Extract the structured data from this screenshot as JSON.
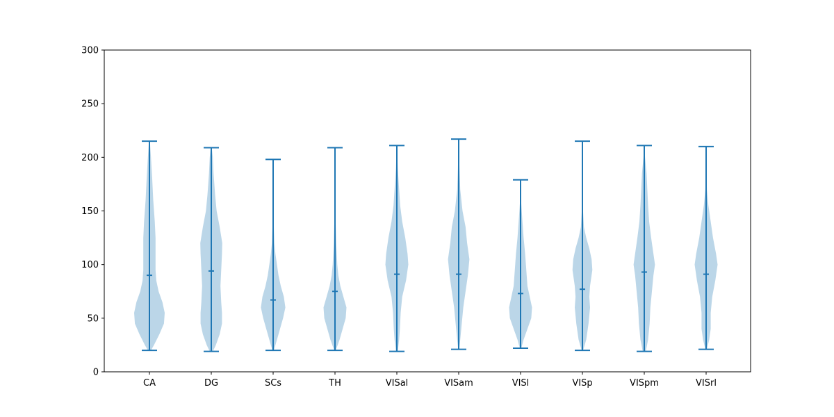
{
  "chart_data": {
    "type": "violin",
    "title": "",
    "xlabel": "",
    "ylabel": "",
    "ylim": [
      0,
      300
    ],
    "yticks": [
      0,
      50,
      100,
      150,
      200,
      250,
      300
    ],
    "grid": false,
    "colors": {
      "body": "#1f77b4",
      "body_alpha": 0.3,
      "lines": "#1f77b4"
    },
    "categories": [
      "CA",
      "DG",
      "SCs",
      "TH",
      "VISal",
      "VISam",
      "VISl",
      "VISp",
      "VISpm",
      "VISrl"
    ],
    "series": [
      {
        "min": 20,
        "max": 215,
        "mean": 90,
        "profile": [
          [
            20,
            0.1
          ],
          [
            25,
            0.3
          ],
          [
            35,
            0.65
          ],
          [
            45,
            0.95
          ],
          [
            55,
            1.0
          ],
          [
            65,
            0.85
          ],
          [
            75,
            0.6
          ],
          [
            85,
            0.45
          ],
          [
            95,
            0.4
          ],
          [
            110,
            0.4
          ],
          [
            125,
            0.4
          ],
          [
            140,
            0.35
          ],
          [
            160,
            0.25
          ],
          [
            180,
            0.18
          ],
          [
            200,
            0.1
          ],
          [
            215,
            0.03
          ]
        ]
      },
      {
        "min": 19,
        "max": 209,
        "mean": 94,
        "profile": [
          [
            19,
            0.1
          ],
          [
            25,
            0.3
          ],
          [
            35,
            0.55
          ],
          [
            45,
            0.7
          ],
          [
            55,
            0.7
          ],
          [
            65,
            0.65
          ],
          [
            80,
            0.6
          ],
          [
            95,
            0.65
          ],
          [
            110,
            0.7
          ],
          [
            120,
            0.72
          ],
          [
            135,
            0.55
          ],
          [
            150,
            0.35
          ],
          [
            165,
            0.25
          ],
          [
            185,
            0.15
          ],
          [
            200,
            0.1
          ],
          [
            209,
            0.03
          ]
        ]
      },
      {
        "min": 20,
        "max": 198,
        "mean": 67,
        "profile": [
          [
            20,
            0.05
          ],
          [
            30,
            0.25
          ],
          [
            40,
            0.45
          ],
          [
            50,
            0.65
          ],
          [
            60,
            0.8
          ],
          [
            70,
            0.7
          ],
          [
            80,
            0.5
          ],
          [
            90,
            0.35
          ],
          [
            100,
            0.25
          ],
          [
            110,
            0.15
          ],
          [
            120,
            0.08
          ],
          [
            140,
            0.03
          ],
          [
            170,
            0.01
          ],
          [
            198,
            0.01
          ]
        ]
      },
      {
        "min": 20,
        "max": 209,
        "mean": 75,
        "profile": [
          [
            20,
            0.05
          ],
          [
            30,
            0.3
          ],
          [
            40,
            0.5
          ],
          [
            50,
            0.7
          ],
          [
            60,
            0.75
          ],
          [
            70,
            0.55
          ],
          [
            80,
            0.35
          ],
          [
            90,
            0.22
          ],
          [
            100,
            0.15
          ],
          [
            120,
            0.08
          ],
          [
            140,
            0.04
          ],
          [
            170,
            0.02
          ],
          [
            209,
            0.01
          ]
        ]
      },
      {
        "min": 19,
        "max": 211,
        "mean": 91,
        "profile": [
          [
            19,
            0.06
          ],
          [
            30,
            0.15
          ],
          [
            40,
            0.2
          ],
          [
            55,
            0.25
          ],
          [
            70,
            0.35
          ],
          [
            85,
            0.6
          ],
          [
            100,
            0.75
          ],
          [
            110,
            0.7
          ],
          [
            125,
            0.55
          ],
          [
            140,
            0.35
          ],
          [
            155,
            0.22
          ],
          [
            170,
            0.15
          ],
          [
            190,
            0.06
          ],
          [
            211,
            0.01
          ]
        ]
      },
      {
        "min": 21,
        "max": 217,
        "mean": 91,
        "profile": [
          [
            21,
            0.03
          ],
          [
            30,
            0.1
          ],
          [
            45,
            0.2
          ],
          [
            60,
            0.3
          ],
          [
            75,
            0.45
          ],
          [
            90,
            0.6
          ],
          [
            105,
            0.7
          ],
          [
            120,
            0.55
          ],
          [
            135,
            0.45
          ],
          [
            150,
            0.25
          ],
          [
            170,
            0.1
          ],
          [
            190,
            0.05
          ],
          [
            217,
            0.01
          ]
        ]
      },
      {
        "min": 22,
        "max": 179,
        "mean": 73,
        "profile": [
          [
            22,
            0.05
          ],
          [
            30,
            0.2
          ],
          [
            40,
            0.45
          ],
          [
            50,
            0.7
          ],
          [
            60,
            0.75
          ],
          [
            70,
            0.6
          ],
          [
            80,
            0.45
          ],
          [
            90,
            0.4
          ],
          [
            100,
            0.35
          ],
          [
            110,
            0.3
          ],
          [
            125,
            0.2
          ],
          [
            145,
            0.1
          ],
          [
            160,
            0.03
          ],
          [
            179,
            0.01
          ]
        ]
      },
      {
        "min": 20,
        "max": 215,
        "mean": 77,
        "profile": [
          [
            20,
            0.05
          ],
          [
            30,
            0.25
          ],
          [
            45,
            0.4
          ],
          [
            60,
            0.5
          ],
          [
            70,
            0.45
          ],
          [
            80,
            0.5
          ],
          [
            95,
            0.65
          ],
          [
            105,
            0.6
          ],
          [
            115,
            0.45
          ],
          [
            125,
            0.25
          ],
          [
            135,
            0.1
          ],
          [
            150,
            0.04
          ],
          [
            180,
            0.01
          ],
          [
            215,
            0.01
          ]
        ]
      },
      {
        "min": 19,
        "max": 211,
        "mean": 93,
        "profile": [
          [
            19,
            0.1
          ],
          [
            30,
            0.25
          ],
          [
            45,
            0.35
          ],
          [
            60,
            0.4
          ],
          [
            75,
            0.5
          ],
          [
            90,
            0.6
          ],
          [
            100,
            0.7
          ],
          [
            110,
            0.6
          ],
          [
            125,
            0.45
          ],
          [
            140,
            0.32
          ],
          [
            155,
            0.25
          ],
          [
            170,
            0.2
          ],
          [
            185,
            0.15
          ],
          [
            200,
            0.05
          ],
          [
            211,
            0.01
          ]
        ]
      },
      {
        "min": 21,
        "max": 210,
        "mean": 91,
        "profile": [
          [
            21,
            0.05
          ],
          [
            30,
            0.2
          ],
          [
            40,
            0.3
          ],
          [
            55,
            0.3
          ],
          [
            70,
            0.4
          ],
          [
            85,
            0.6
          ],
          [
            100,
            0.75
          ],
          [
            110,
            0.65
          ],
          [
            125,
            0.45
          ],
          [
            140,
            0.3
          ],
          [
            155,
            0.15
          ],
          [
            170,
            0.05
          ],
          [
            190,
            0.02
          ],
          [
            210,
            0.01
          ]
        ]
      }
    ]
  }
}
